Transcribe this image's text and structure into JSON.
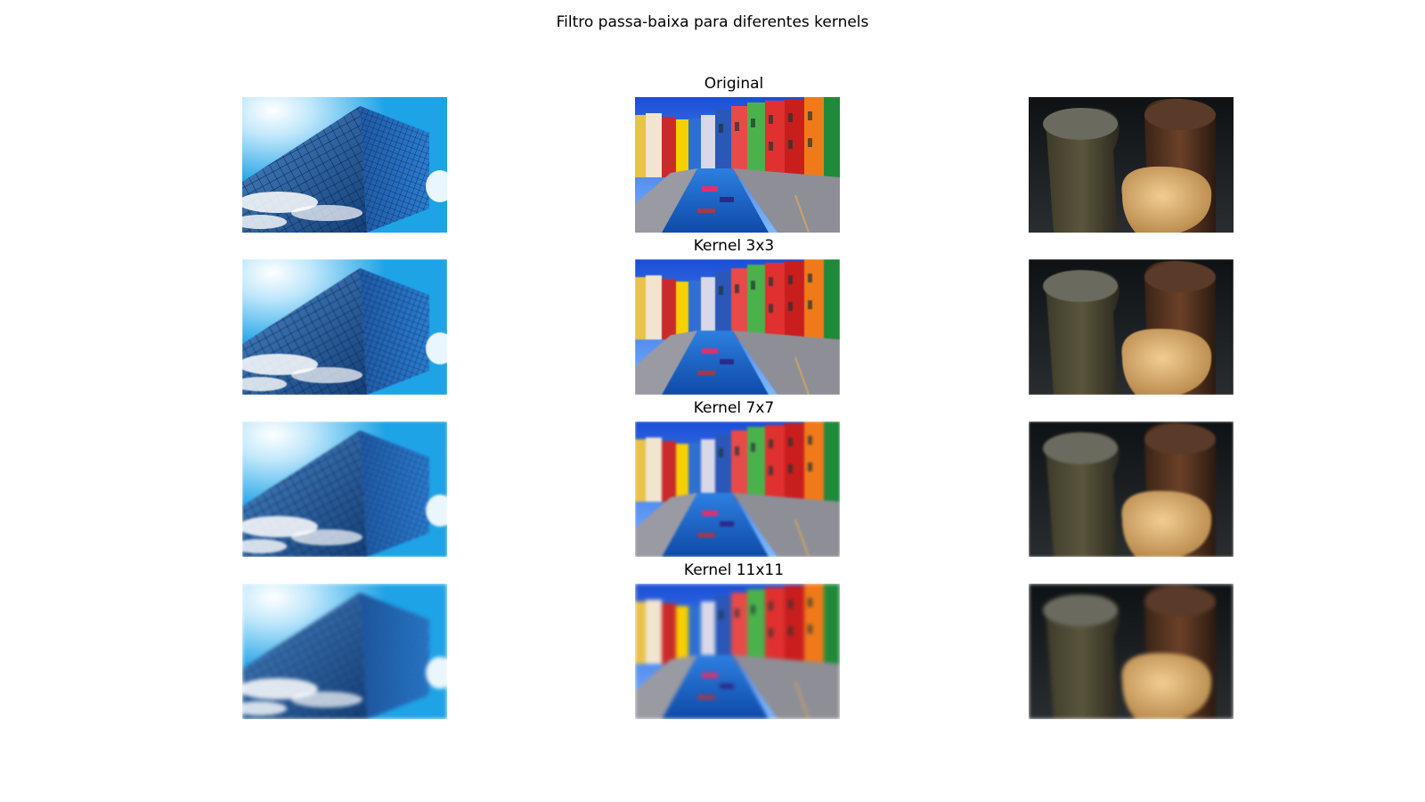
{
  "figure": {
    "suptitle": "Filtro passa-baixa para diferentes kernels",
    "rows": [
      {
        "title": "Original",
        "blur": 0
      },
      {
        "title": "Kernel 3x3",
        "blur": 0.6
      },
      {
        "title": "Kernel 7x7",
        "blur": 1.4
      },
      {
        "title": "Kernel 11x11",
        "blur": 2.2
      }
    ],
    "columns": [
      {
        "subject": "glass-building-sky"
      },
      {
        "subject": "colorful-canal-houses"
      },
      {
        "subject": "dark-pebble-objects"
      }
    ]
  }
}
